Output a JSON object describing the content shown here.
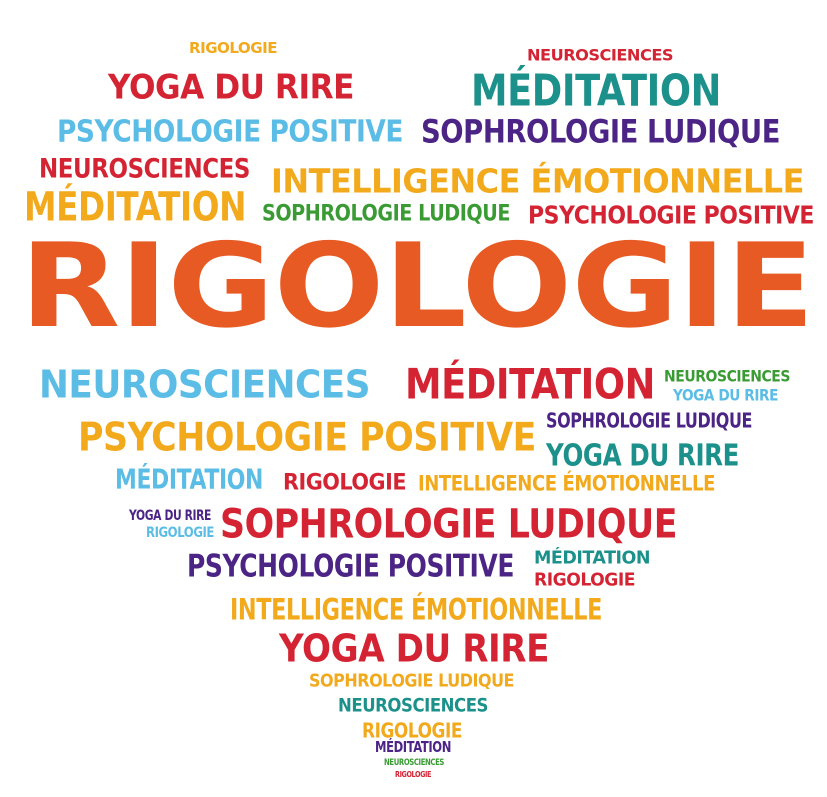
{
  "palette": {
    "orange": "#e85a23",
    "yellow": "#f2a91c",
    "red": "#d42434",
    "teal": "#1c918c",
    "sky": "#5bbde6",
    "purple": "#4b2485",
    "green": "#3a9b35"
  },
  "words": [
    {
      "text": "RIGOLOGIE",
      "color": "yellow"
    },
    {
      "text": "NEUROSCIENCES",
      "color": "red"
    },
    {
      "text": "YOGA DU RIRE",
      "color": "red"
    },
    {
      "text": "MÉDITATION",
      "color": "teal"
    },
    {
      "text": "PSYCHOLOGIE POSITIVE",
      "color": "sky"
    },
    {
      "text": "SOPHROLOGIE LUDIQUE",
      "color": "purple"
    },
    {
      "text": "NEUROSCIENCES",
      "color": "red"
    },
    {
      "text": "INTELLIGENCE ÉMOTIONNELLE",
      "color": "yellow"
    },
    {
      "text": "MÉDITATION",
      "color": "yellow"
    },
    {
      "text": "SOPHROLOGIE LUDIQUE",
      "color": "green"
    },
    {
      "text": "PSYCHOLOGIE POSITIVE",
      "color": "red"
    },
    {
      "text": "RIGOLOGIE",
      "color": "orange"
    },
    {
      "text": "NEUROSCIENCES",
      "color": "sky"
    },
    {
      "text": "MÉDITATION",
      "color": "red"
    },
    {
      "text": "NEUROSCIENCES",
      "color": "green"
    },
    {
      "text": "YOGA DU RIRE",
      "color": "sky"
    },
    {
      "text": "SOPHROLOGIE LUDIQUE",
      "color": "purple"
    },
    {
      "text": "PSYCHOLOGIE POSITIVE",
      "color": "yellow"
    },
    {
      "text": "YOGA DU RIRE",
      "color": "teal"
    },
    {
      "text": "MÉDITATION",
      "color": "sky"
    },
    {
      "text": "RIGOLOGIE",
      "color": "red"
    },
    {
      "text": "INTELLIGENCE ÉMOTIONNELLE",
      "color": "yellow"
    },
    {
      "text": "YOGA DU RIRE",
      "color": "purple"
    },
    {
      "text": "RIGOLOGIE",
      "color": "sky"
    },
    {
      "text": "SOPHROLOGIE LUDIQUE",
      "color": "red"
    },
    {
      "text": "MÉDITATION",
      "color": "teal"
    },
    {
      "text": "PSYCHOLOGIE POSITIVE",
      "color": "purple"
    },
    {
      "text": "RIGOLOGIE",
      "color": "red"
    },
    {
      "text": "INTELLIGENCE ÉMOTIONNELLE",
      "color": "yellow"
    },
    {
      "text": "YOGA DU RIRE",
      "color": "red"
    },
    {
      "text": "SOPHROLOGIE LUDIQUE",
      "color": "yellow"
    },
    {
      "text": "NEUROSCIENCES",
      "color": "teal"
    },
    {
      "text": "RIGOLOGIE",
      "color": "yellow"
    },
    {
      "text": "MÉDITATION",
      "color": "purple"
    },
    {
      "text": "NEUROSCIENCES",
      "color": "green"
    },
    {
      "text": "RIGOLOGIE",
      "color": "red"
    }
  ]
}
